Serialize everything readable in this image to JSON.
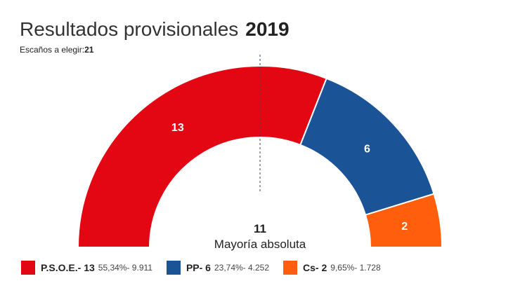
{
  "header": {
    "title": "Resultados provisionales",
    "year": "2019",
    "seats_label": "Escaños a elegir:",
    "seats_total": "21"
  },
  "majority": {
    "value": "11",
    "label": "Mayoría absoluta"
  },
  "legend": [
    {
      "name": "P.S.O.E.- 13",
      "detail": "55,34%- 9.911",
      "color": "#e30613"
    },
    {
      "name": "PP- 6",
      "detail": "23,74%- 4.252",
      "color": "#1a5496"
    },
    {
      "name": "Cs- 2",
      "detail": "9,65%- 1.728",
      "color": "#ff5f0d"
    }
  ],
  "chart_data": {
    "type": "hemicycle",
    "title": "Resultados provisionales 2019",
    "total_seats": 21,
    "majority": 11,
    "series": [
      {
        "name": "P.S.O.E.",
        "seats": 13,
        "percent": 55.34,
        "votes": 9911,
        "color": "#e30613"
      },
      {
        "name": "PP",
        "seats": 6,
        "percent": 23.74,
        "votes": 4252,
        "color": "#1a5496"
      },
      {
        "name": "Cs",
        "seats": 2,
        "percent": 9.65,
        "votes": 1728,
        "color": "#ff5f0d"
      }
    ]
  }
}
